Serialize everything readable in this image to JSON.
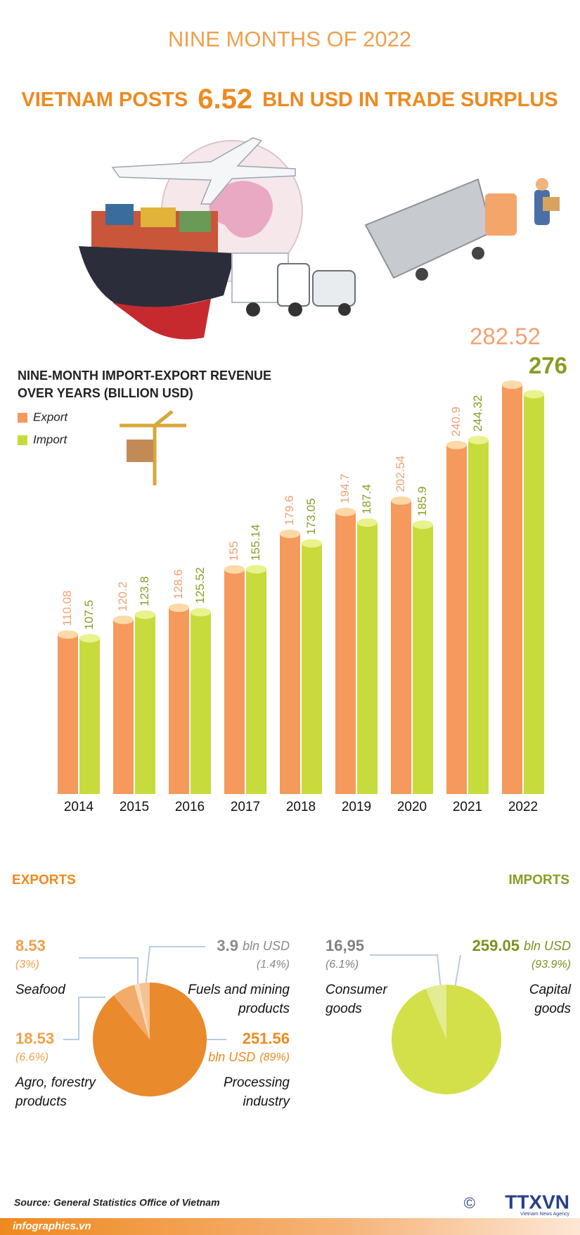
{
  "header": {
    "kicker": "NINE MONTHS OF 2022",
    "title_start": "VIETNAM POSTS",
    "title_value": "6.52",
    "title_end": "BLN USD IN TRADE SURPLUS"
  },
  "chart_data": [
    {
      "type": "bar",
      "title": "NINE-MONTH IMPORT-EXPORT REVENUE OVER YEARS (BILLION USD)",
      "categories": [
        "2014",
        "2015",
        "2016",
        "2017",
        "2018",
        "2019",
        "2020",
        "2021",
        "2022"
      ],
      "series": [
        {
          "name": "Export",
          "color": "#f59a5c",
          "cap_color": "#fcd9a6",
          "label_color": "#f2a173",
          "values": [
            110.08,
            120.2,
            128.6,
            155,
            179.6,
            194.7,
            202.54,
            240.9,
            282.52
          ]
        },
        {
          "name": "Import",
          "color": "#c8db3c",
          "cap_color": "#e9f28e",
          "label_color": "#8b9b25",
          "values": [
            107.5,
            123.8,
            125.52,
            155.14,
            173.05,
            187.4,
            185.9,
            244.32,
            276
          ]
        }
      ],
      "ylim": [
        0,
        300
      ],
      "legend": "top-left"
    },
    {
      "type": "pie",
      "title": "EXPORTS",
      "unit": "bln USD",
      "categories": [
        "Seafood",
        "Fuels and mining products",
        "Agro, forestry products",
        "Processing industry"
      ],
      "values": [
        8.53,
        3.9,
        18.53,
        251.56
      ],
      "percent_labels": [
        "(3%)",
        "(1.4%)",
        "(6.6%)",
        "(89%)"
      ],
      "colors": [
        "#f7c391",
        "#fadcbc",
        "#f2ab6a",
        "#e98a2c"
      ]
    },
    {
      "type": "pie",
      "title": "IMPORTS",
      "unit": "bln USD",
      "categories": [
        "Consumer goods",
        "Capital goods"
      ],
      "values": [
        16.95,
        259.05
      ],
      "value_labels": [
        "16,95",
        "259.05"
      ],
      "percent_labels": [
        "(6.1%)",
        "(93.9%)"
      ],
      "colors": [
        "#e3ec92",
        "#d3e04a"
      ]
    }
  ],
  "source": "Source: General Statistics Office of Vietnam",
  "footer": "infographics.vn",
  "copyright": "©",
  "logo": "TTXVN",
  "logo_caption": "Vietnam News Agency"
}
